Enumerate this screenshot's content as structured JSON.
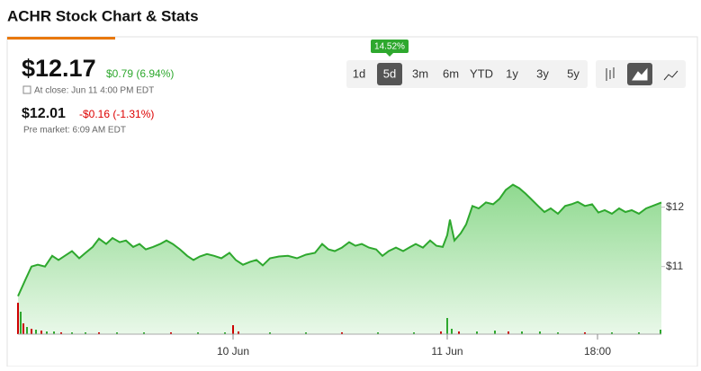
{
  "header": {
    "title": "ACHR Stock Chart & Stats"
  },
  "quote": {
    "price": "$12.17",
    "change": "$0.79 (6.94%)",
    "close_note": "At close: Jun 11 4:00 PM EDT",
    "pre_price": "$12.01",
    "pre_change": "-$0.16 (-1.31%)",
    "pre_note": "Pre market: 6:09 AM EDT"
  },
  "ranges": {
    "buttons": [
      "1d",
      "5d",
      "3m",
      "6m",
      "YTD",
      "1y",
      "3y",
      "5y"
    ],
    "active": 1,
    "tooltip": "14.52%"
  },
  "chart_data": {
    "type": "area",
    "color": "#2ea82e",
    "x": [
      0,
      8,
      15,
      22,
      30,
      38,
      45,
      52,
      60,
      68,
      75,
      83,
      90,
      98,
      105,
      113,
      120,
      128,
      135,
      142,
      150,
      158,
      165,
      172,
      180,
      188,
      195,
      202,
      210,
      218,
      226,
      235,
      242,
      250,
      258,
      265,
      272,
      280,
      290,
      300,
      310,
      320,
      330,
      338,
      345,
      352,
      360,
      368,
      375,
      382,
      390,
      398,
      405,
      412,
      420,
      428,
      436,
      442,
      450,
      458,
      465,
      472,
      477,
      480,
      485,
      492,
      498,
      505,
      512,
      520,
      528,
      535,
      542,
      550,
      557,
      564,
      570,
      578,
      585,
      592,
      600,
      608,
      615,
      622,
      630,
      638,
      645,
      652,
      660,
      668,
      675,
      682,
      690,
      698,
      705,
      715
    ],
    "values": [
      10.5,
      10.77,
      11.0,
      11.03,
      11.0,
      11.18,
      11.11,
      11.18,
      11.26,
      11.14,
      11.23,
      11.33,
      11.47,
      11.38,
      11.48,
      11.41,
      11.44,
      11.33,
      11.38,
      11.29,
      11.33,
      11.38,
      11.44,
      11.38,
      11.29,
      11.18,
      11.11,
      11.17,
      11.21,
      11.18,
      11.14,
      11.23,
      11.11,
      11.03,
      11.08,
      11.11,
      11.02,
      11.14,
      11.17,
      11.18,
      11.14,
      11.2,
      11.23,
      11.38,
      11.29,
      11.26,
      11.32,
      11.41,
      11.35,
      11.38,
      11.32,
      11.29,
      11.18,
      11.26,
      11.32,
      11.26,
      11.33,
      11.38,
      11.32,
      11.44,
      11.35,
      11.33,
      11.53,
      11.79,
      11.44,
      11.56,
      11.71,
      12.02,
      11.98,
      12.08,
      12.05,
      12.14,
      12.29,
      12.38,
      12.32,
      12.23,
      12.14,
      12.02,
      11.92,
      11.98,
      11.89,
      12.02,
      12.05,
      12.09,
      12.02,
      12.05,
      11.91,
      11.95,
      11.89,
      11.98,
      11.92,
      11.95,
      11.89,
      11.98,
      12.02,
      12.08
    ],
    "xlim": [
      0,
      715
    ],
    "ylim": [
      9.86,
      13.07
    ],
    "xticks": [
      {
        "value": 239,
        "label": "10 Jun"
      },
      {
        "value": 477,
        "label": "11 Jun"
      },
      {
        "value": 644,
        "label": "18:00"
      }
    ],
    "yticks": [
      {
        "value": 11,
        "label": "$11"
      },
      {
        "value": 12,
        "label": "$12"
      }
    ],
    "volume": {
      "x": [
        0,
        3,
        6,
        10,
        15,
        20,
        26,
        32,
        40,
        48,
        60,
        75,
        90,
        110,
        140,
        170,
        200,
        230,
        239,
        245,
        280,
        320,
        360,
        400,
        440,
        470,
        477,
        482,
        490,
        510,
        530,
        545,
        560,
        580,
        600,
        630,
        660,
        690,
        714
      ],
      "values": [
        35,
        25,
        12,
        8,
        6,
        5,
        4,
        3,
        3,
        2,
        2,
        2,
        2,
        2,
        2,
        2,
        2,
        2,
        10,
        3,
        2,
        2,
        2,
        2,
        2,
        3,
        18,
        6,
        3,
        3,
        4,
        3,
        3,
        3,
        2,
        2,
        2,
        2,
        5
      ],
      "colors": [
        "#c00",
        "#2ea82e",
        "#c00",
        "#2ea82e",
        "#c00",
        "#2ea82e",
        "#c00",
        "#2ea82e",
        "#2ea82e",
        "#c00",
        "#2ea82e",
        "#2ea82e",
        "#c00",
        "#2ea82e",
        "#2ea82e",
        "#c00",
        "#2ea82e",
        "#2ea82e",
        "#c00",
        "#c00",
        "#2ea82e",
        "#2ea82e",
        "#c00",
        "#2ea82e",
        "#2ea82e",
        "#c00",
        "#2ea82e",
        "#2ea82e",
        "#c00",
        "#2ea82e",
        "#2ea82e",
        "#c00",
        "#2ea82e",
        "#2ea82e",
        "#2ea82e",
        "#c00",
        "#2ea82e",
        "#2ea82e",
        "#2ea82e"
      ],
      "vlim": [
        0,
        40
      ]
    }
  }
}
